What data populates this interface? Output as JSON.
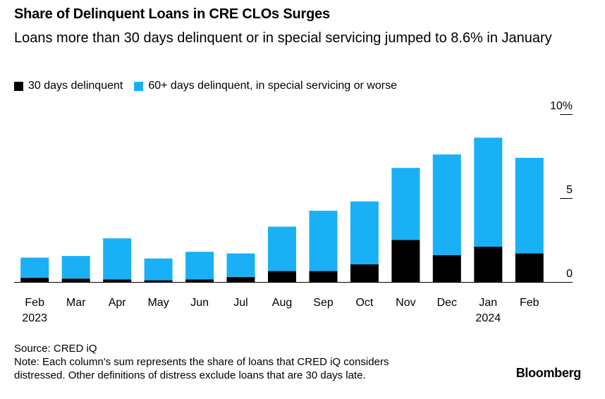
{
  "header": {
    "title": "Share of Delinquent Loans in CRE CLOs Surges",
    "subtitle": "Loans more than 30 days delinquent or in special servicing jumped to 8.6% in January"
  },
  "legend": [
    {
      "label": "30 days delinquent",
      "color": "#000000"
    },
    {
      "label": "60+ days delinquent, in special servicing or worse",
      "color": "#1ab0f5"
    }
  ],
  "chart_data": {
    "type": "bar",
    "stacked": true,
    "categories": [
      "Feb",
      "Mar",
      "Apr",
      "May",
      "Jun",
      "Jul",
      "Aug",
      "Sep",
      "Oct",
      "Nov",
      "Dec",
      "Jan",
      "Feb"
    ],
    "category_sublabels": [
      "2023",
      "",
      "",
      "",
      "",
      "",
      "",
      "",
      "",
      "",
      "",
      "2024",
      ""
    ],
    "series": [
      {
        "name": "30 days delinquent",
        "color": "#000000",
        "values": [
          0.25,
          0.2,
          0.15,
          0.1,
          0.15,
          0.3,
          0.65,
          0.65,
          1.05,
          2.5,
          1.6,
          2.1,
          1.7
        ]
      },
      {
        "name": "60+ days delinquent, in special servicing or worse",
        "color": "#1ab0f5",
        "values": [
          1.2,
          1.35,
          2.45,
          1.3,
          1.65,
          1.4,
          2.65,
          3.6,
          3.75,
          4.3,
          6.0,
          6.5,
          5.7
        ]
      }
    ],
    "y_ticks": [
      {
        "value": 10,
        "label": "10%"
      },
      {
        "value": 5,
        "label": "5"
      },
      {
        "value": 0,
        "label": "0"
      }
    ],
    "ylim": [
      0,
      10
    ],
    "axis_side": "right"
  },
  "footer": {
    "source": "Source: CRED iQ",
    "note_line1": "Note: Each column's sum represents the share of loans that CRED iQ considers",
    "note_line2": "distressed. Other definitions of distress exclude loans that are 30 days late."
  },
  "brand": "Bloomberg"
}
